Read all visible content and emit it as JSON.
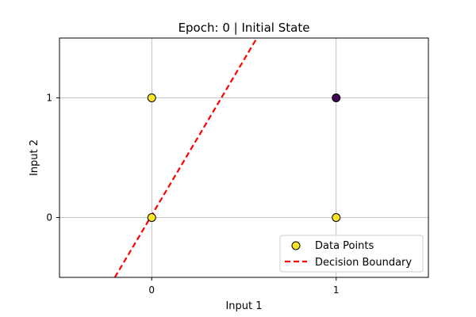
{
  "chart_data": {
    "type": "scatter",
    "title": "Epoch: 0 | Initial State",
    "xlabel": "Input 1",
    "ylabel": "Input 2",
    "xlim": [
      -0.5,
      1.5
    ],
    "ylim": [
      -0.5,
      1.5
    ],
    "xticks": [
      "0",
      "1"
    ],
    "yticks": [
      "0",
      "1"
    ],
    "grid": true,
    "legend_position": "lower-right",
    "series": [
      {
        "name": "Data Points",
        "kind": "scatter",
        "points": [
          {
            "x": 0,
            "y": 0,
            "color": "#fde725"
          },
          {
            "x": 0,
            "y": 1,
            "color": "#fde725"
          },
          {
            "x": 1,
            "y": 0,
            "color": "#fde725"
          },
          {
            "x": 1,
            "y": 1,
            "color": "#440154"
          }
        ]
      },
      {
        "name": "Decision Boundary",
        "kind": "line",
        "style": "dashed",
        "color": "#ff0000",
        "x": [
          -0.2,
          0.57
        ],
        "y": [
          -0.5,
          1.5
        ]
      }
    ]
  }
}
